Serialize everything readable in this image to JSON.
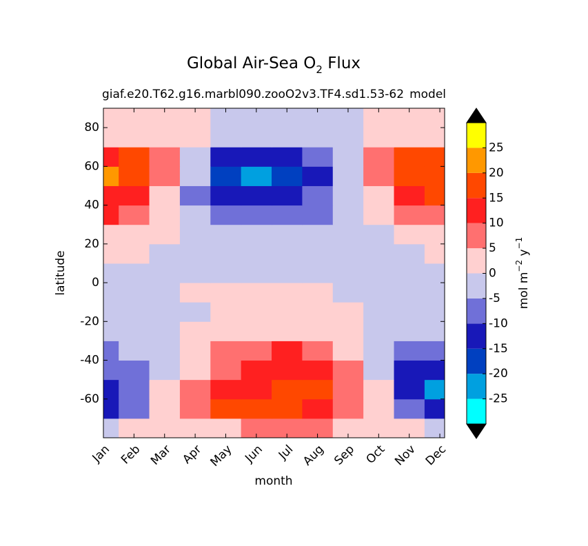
{
  "chart_data": {
    "type": "contour",
    "title_parts": [
      "Global Air-Sea O",
      "2",
      " Flux"
    ],
    "subtitle_left": "giaf.e20.T62.g16.marbl090.zooO2v3.TF4.sd1.53-62",
    "subtitle_right": "model",
    "x_label": "month",
    "y_label": "latitude",
    "colorbar_label_parts": [
      "mol m",
      "−2",
      " y",
      "−1"
    ],
    "categories": [
      "Jan",
      "Feb",
      "Mar",
      "Apr",
      "May",
      "Jun",
      "Jul",
      "Aug",
      "Sep",
      "Oct",
      "Nov",
      "Dec"
    ],
    "ylim": [
      -80,
      90
    ],
    "yticks": [
      -60,
      -40,
      -20,
      0,
      20,
      40,
      60,
      80
    ],
    "latitudes": [
      -75,
      -65,
      -55,
      -45,
      -35,
      -25,
      -15,
      -5,
      5,
      15,
      25,
      35,
      45,
      55,
      65,
      75,
      85
    ],
    "z": [
      [
        -2,
        2,
        2,
        2,
        2,
        7,
        7,
        7,
        2,
        2,
        2,
        -2
      ],
      [
        -12,
        -7,
        2,
        7,
        17,
        17,
        17,
        12,
        7,
        2,
        -7,
        -12
      ],
      [
        -12,
        -7,
        2,
        7,
        12,
        12,
        17,
        17,
        7,
        2,
        -12,
        -22
      ],
      [
        -7,
        -7,
        -2,
        2,
        7,
        12,
        12,
        12,
        7,
        -2,
        -12,
        -12
      ],
      [
        -7,
        -2,
        -2,
        2,
        7,
        7,
        12,
        7,
        2,
        -2,
        -7,
        -7
      ],
      [
        -2,
        -2,
        -2,
        2,
        2,
        2,
        2,
        2,
        2,
        -2,
        -2,
        -2
      ],
      [
        -2,
        -2,
        -2,
        -2,
        2,
        2,
        2,
        2,
        2,
        -2,
        -2,
        -2
      ],
      [
        -2,
        -2,
        -2,
        2,
        2,
        2,
        2,
        2,
        -2,
        -2,
        -2,
        -2
      ],
      [
        -2,
        -2,
        -2,
        -2,
        -2,
        -2,
        -2,
        -2,
        -2,
        -2,
        -2,
        -2
      ],
      [
        2,
        2,
        -2,
        -2,
        -2,
        -2,
        -2,
        -2,
        -2,
        -2,
        -2,
        2
      ],
      [
        2,
        2,
        2,
        -2,
        -2,
        -2,
        -2,
        -2,
        -2,
        -2,
        2,
        2
      ],
      [
        12,
        7,
        2,
        -2,
        -7,
        -7,
        -7,
        -7,
        -2,
        2,
        7,
        7
      ],
      [
        12,
        12,
        2,
        -7,
        -12,
        -12,
        -12,
        -7,
        -2,
        2,
        12,
        17
      ],
      [
        22,
        17,
        7,
        -2,
        -17,
        -22,
        -17,
        -12,
        -2,
        7,
        17,
        17
      ],
      [
        12,
        17,
        7,
        -2,
        -12,
        -12,
        -12,
        -7,
        -2,
        7,
        17,
        17
      ],
      [
        2,
        2,
        2,
        2,
        -2,
        -2,
        -2,
        -2,
        -2,
        2,
        2,
        2
      ],
      [
        2,
        2,
        2,
        2,
        -2,
        -2,
        -2,
        -2,
        -2,
        2,
        2,
        2
      ]
    ],
    "levels": [
      -30,
      -25,
      -20,
      -15,
      -10,
      -5,
      0,
      5,
      10,
      15,
      20,
      25,
      30
    ],
    "colors": [
      "#00ffff",
      "#00a0e0",
      "#0040c0",
      "#1818b8",
      "#7070d8",
      "#c8c8ec",
      "#ffd0d0",
      "#ff7070",
      "#ff2020",
      "#ff4800",
      "#ff9800",
      "#ffff00"
    ],
    "extend_colors": [
      "#000000",
      "#000000"
    ],
    "cbar_ticks": [
      -25,
      -20,
      -15,
      -10,
      -5,
      0,
      5,
      10,
      15,
      20,
      25
    ]
  }
}
